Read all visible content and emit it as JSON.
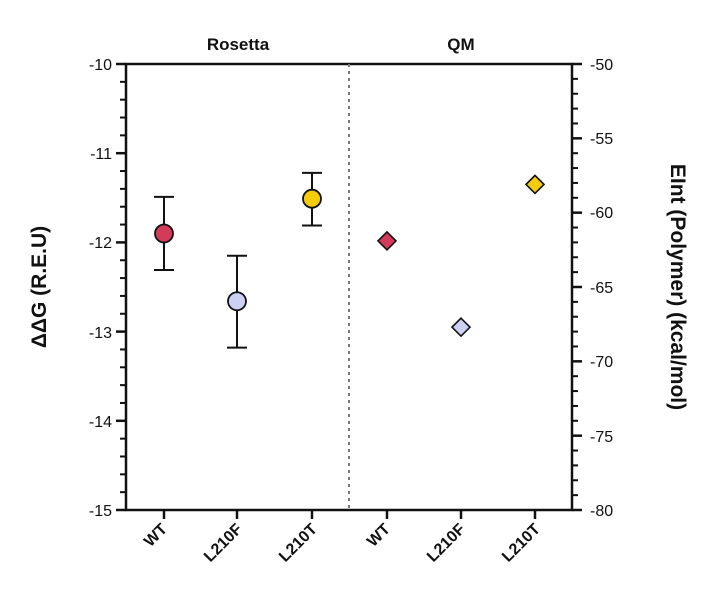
{
  "chart_data": {
    "type": "scatter",
    "panels": [
      {
        "label": "Rosetta",
        "axis": "left",
        "marker": "circle",
        "categories": [
          "WT",
          "L210F",
          "L210T"
        ],
        "values": [
          -11.9,
          -12.66,
          -11.51
        ],
        "err_low": [
          -12.31,
          -13.18,
          -11.81
        ],
        "err_high": [
          -11.49,
          -12.15,
          -11.22
        ],
        "colors": [
          "#d23b5a",
          "#ccd0f2",
          "#f4cc0c"
        ]
      },
      {
        "label": "QM",
        "axis": "right",
        "marker": "diamond",
        "categories": [
          "WT",
          "L210F",
          "L210T"
        ],
        "values": [
          -61.9,
          -67.7,
          -58.1
        ],
        "colors": [
          "#d23b5a",
          "#ccd0f2",
          "#f4cc0c"
        ]
      }
    ],
    "left_axis": {
      "label": "ΔΔG (R.E.U)",
      "ylim": [
        -15,
        -10
      ],
      "ticks": [
        -10,
        -11,
        -12,
        -13,
        -14,
        -15
      ],
      "tick_labels": [
        "-10",
        "-11",
        "-12",
        "-13",
        "-14",
        "-15"
      ]
    },
    "right_axis": {
      "label": "EInt (Polymer) (kcal/mol)",
      "ylim": [
        -80,
        -50
      ],
      "ticks": [
        -50,
        -55,
        -60,
        -65,
        -70,
        -75,
        -80
      ],
      "tick_labels": [
        "-50",
        "-55",
        "-60",
        "-65",
        "-70",
        "-75",
        "-80"
      ]
    },
    "divider": "dotted",
    "grid": false,
    "legend": "none"
  }
}
